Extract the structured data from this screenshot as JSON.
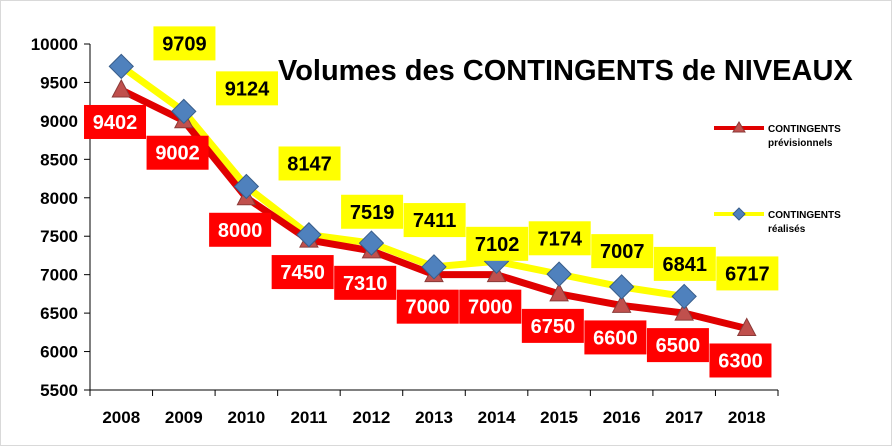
{
  "chart_data": {
    "type": "line",
    "title": "Volumes des CONTINGENTS de NIVEAUX",
    "xlabel": "",
    "ylabel": "",
    "categories": [
      "2008",
      "2009",
      "2010",
      "2011",
      "2012",
      "2013",
      "2014",
      "2015",
      "2016",
      "2017",
      "2018"
    ],
    "ylim": [
      5500,
      10000
    ],
    "yticks": [
      5500,
      6000,
      6500,
      7000,
      7500,
      8000,
      8500,
      9000,
      9500,
      10000
    ],
    "grid": false,
    "legend_position": "right",
    "series": [
      {
        "key": "previsionnels",
        "name": "CONTINGENTS prévisionnels",
        "legend_line1": "CONTINGENTS",
        "legend_line2": "prévisionnels",
        "color": "#e00000",
        "marker_color": "#c0504d",
        "marker": "triangle",
        "values": [
          9402,
          9002,
          8000,
          7450,
          7310,
          7000,
          7000,
          6750,
          6600,
          6500,
          6300
        ],
        "label_box_color": "#ff0000",
        "label_text_color": "#ffffff"
      },
      {
        "key": "realises",
        "name": "CONTINGENTS réalisés",
        "legend_line1": "CONTINGENTS",
        "legend_line2": "réalisés",
        "color": "#ffff00",
        "marker_color": "#4f81bd",
        "marker": "diamond",
        "values": [
          9709,
          9124,
          8147,
          7519,
          7411,
          7102,
          7174,
          7007,
          6841,
          6717,
          null
        ],
        "label_box_color": "#ffff00",
        "label_text_color": "#000000"
      }
    ]
  }
}
